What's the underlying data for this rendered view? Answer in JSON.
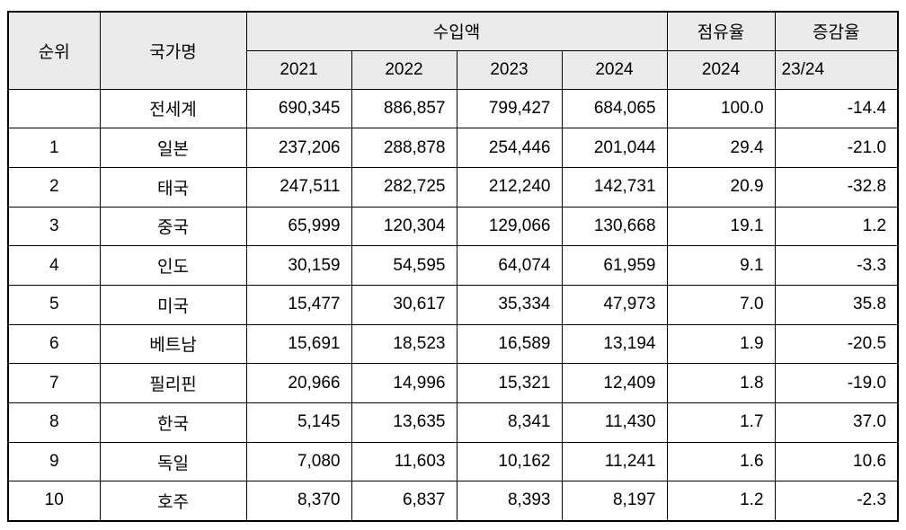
{
  "colors": {
    "header_bg": "#ebebeb",
    "border": "#000000",
    "text": "#000000",
    "page_bg": "#ffffff"
  },
  "table": {
    "header": {
      "rank": "순위",
      "country": "국가명",
      "imports_group": "수입액",
      "share_group": "점유율",
      "change_group": "증감율",
      "years": [
        "2021",
        "2022",
        "2023",
        "2024"
      ],
      "share_year": "2024",
      "change_period": "23/24"
    },
    "rows": [
      {
        "rank": "",
        "country": "전세계",
        "values": [
          "690,345",
          "886,857",
          "799,427",
          "684,065"
        ],
        "share": "100.0",
        "change": "-14.4"
      },
      {
        "rank": "1",
        "country": "일본",
        "values": [
          "237,206",
          "288,878",
          "254,446",
          "201,044"
        ],
        "share": "29.4",
        "change": "-21.0"
      },
      {
        "rank": "2",
        "country": "태국",
        "values": [
          "247,511",
          "282,725",
          "212,240",
          "142,731"
        ],
        "share": "20.9",
        "change": "-32.8"
      },
      {
        "rank": "3",
        "country": "중국",
        "values": [
          "65,999",
          "120,304",
          "129,066",
          "130,668"
        ],
        "share": "19.1",
        "change": "1.2"
      },
      {
        "rank": "4",
        "country": "인도",
        "values": [
          "30,159",
          "54,595",
          "64,074",
          "61,959"
        ],
        "share": "9.1",
        "change": "-3.3"
      },
      {
        "rank": "5",
        "country": "미국",
        "values": [
          "15,477",
          "30,617",
          "35,334",
          "47,973"
        ],
        "share": "7.0",
        "change": "35.8"
      },
      {
        "rank": "6",
        "country": "베트남",
        "values": [
          "15,691",
          "18,523",
          "16,589",
          "13,194"
        ],
        "share": "1.9",
        "change": "-20.5"
      },
      {
        "rank": "7",
        "country": "필리핀",
        "values": [
          "20,966",
          "14,996",
          "15,321",
          "12,409"
        ],
        "share": "1.8",
        "change": "-19.0"
      },
      {
        "rank": "8",
        "country": "한국",
        "values": [
          "5,145",
          "13,635",
          "8,341",
          "11,430"
        ],
        "share": "1.7",
        "change": "37.0"
      },
      {
        "rank": "9",
        "country": "독일",
        "values": [
          "7,080",
          "11,603",
          "10,162",
          "11,241"
        ],
        "share": "1.6",
        "change": "10.6"
      },
      {
        "rank": "10",
        "country": "호주",
        "values": [
          "8,370",
          "6,837",
          "8,393",
          "8,197"
        ],
        "share": "1.2",
        "change": "-2.3"
      }
    ]
  },
  "chart_data": {
    "type": "table",
    "title": "",
    "column_groups": [
      {
        "label": "수입액",
        "span": [
          "2021",
          "2022",
          "2023",
          "2024"
        ]
      },
      {
        "label": "점유율",
        "span": [
          "2024"
        ]
      },
      {
        "label": "증감율",
        "span": [
          "23/24"
        ]
      }
    ],
    "columns": [
      "순위",
      "국가명",
      "수입액 2021",
      "수입액 2022",
      "수입액 2023",
      "수입액 2024",
      "점유율 2024",
      "증감율 23/24"
    ],
    "rows": [
      [
        null,
        "전세계",
        690345,
        886857,
        799427,
        684065,
        100.0,
        -14.4
      ],
      [
        1,
        "일본",
        237206,
        288878,
        254446,
        201044,
        29.4,
        -21.0
      ],
      [
        2,
        "태국",
        247511,
        282725,
        212240,
        142731,
        20.9,
        -32.8
      ],
      [
        3,
        "중국",
        65999,
        120304,
        129066,
        130668,
        19.1,
        1.2
      ],
      [
        4,
        "인도",
        30159,
        54595,
        64074,
        61959,
        9.1,
        -3.3
      ],
      [
        5,
        "미국",
        15477,
        30617,
        35334,
        47973,
        7.0,
        35.8
      ],
      [
        6,
        "베트남",
        15691,
        18523,
        16589,
        13194,
        1.9,
        -20.5
      ],
      [
        7,
        "필리핀",
        20966,
        14996,
        15321,
        12409,
        1.8,
        -19.0
      ],
      [
        8,
        "한국",
        5145,
        13635,
        8341,
        11430,
        1.7,
        37.0
      ],
      [
        9,
        "독일",
        7080,
        11603,
        10162,
        11241,
        1.6,
        10.6
      ],
      [
        10,
        "호주",
        8370,
        6837,
        8393,
        8197,
        1.2,
        -2.3
      ]
    ]
  }
}
